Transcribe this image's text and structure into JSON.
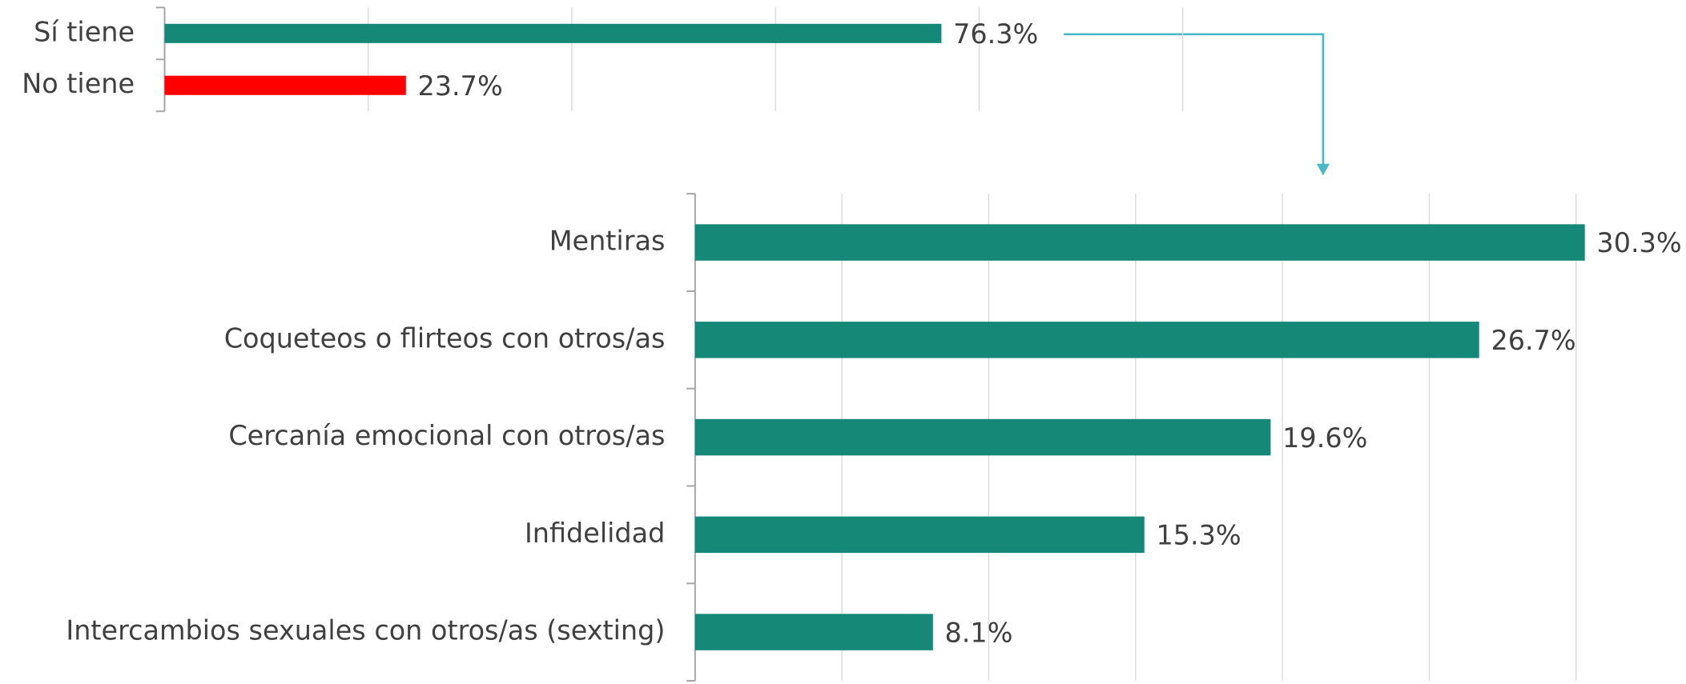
{
  "chart_data": [
    {
      "type": "barh",
      "categories": [
        "Sí tiene",
        "No tiene"
      ],
      "values": [
        76.3,
        23.7
      ],
      "value_labels": [
        "76.3%",
        "23.7%"
      ],
      "colors": [
        "#168878",
        "#ff0000"
      ],
      "xlim": [
        0,
        100
      ],
      "xticks": [
        0,
        20,
        40,
        60,
        80,
        100
      ],
      "grid": true
    },
    {
      "type": "barh",
      "categories": [
        "Mentiras",
        "Coqueteos o flirteos con otros/as",
        "Cercanía emocional con otros/as",
        "Infidelidad",
        "Intercambios sexuales con otros/as (sexting)"
      ],
      "values": [
        30.3,
        26.7,
        19.6,
        15.3,
        8.1
      ],
      "value_labels": [
        "30.3%",
        "26.7%",
        "19.6%",
        "15.3%",
        "8.1%"
      ],
      "colors": [
        "#168878",
        "#168878",
        "#168878",
        "#168878",
        "#168878"
      ],
      "xlim": [
        0,
        30
      ],
      "xticks": [
        0,
        5,
        10,
        15,
        20,
        25,
        30
      ],
      "grid": true
    }
  ]
}
